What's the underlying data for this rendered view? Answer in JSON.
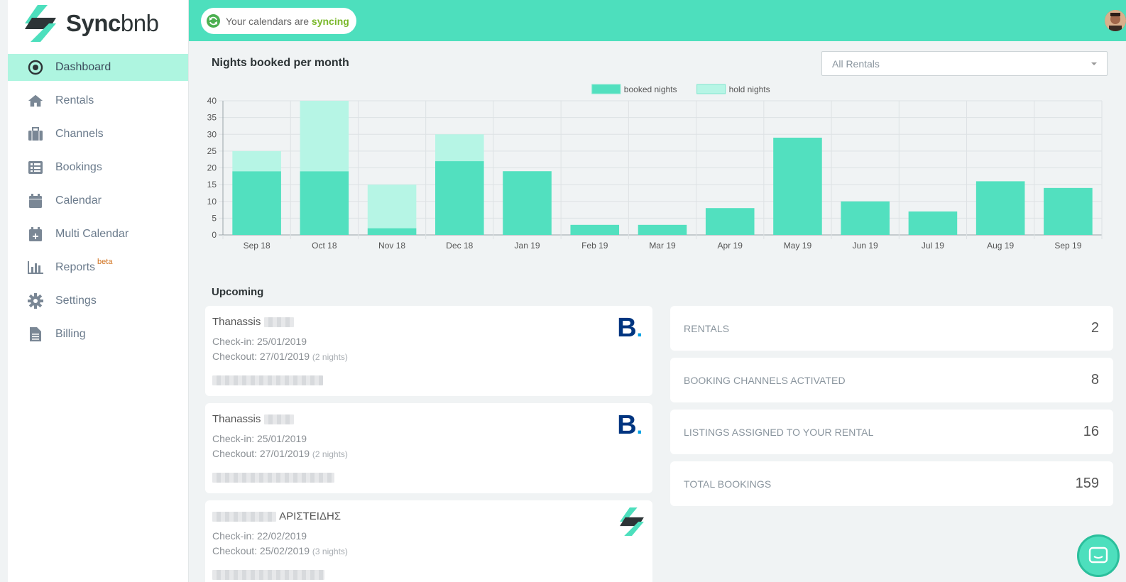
{
  "brand": {
    "name_bold": "Sync",
    "name_light": "bnb",
    "accent": "#4ddfbd",
    "accent_light": "#aef5e0"
  },
  "topbar": {
    "sync_prefix": "Your calendars are",
    "sync_status": "syncing"
  },
  "sidebar": {
    "items": [
      {
        "label": "Dashboard",
        "icon": "dashboard-icon",
        "active": true
      },
      {
        "label": "Rentals",
        "icon": "home-icon"
      },
      {
        "label": "Channels",
        "icon": "briefcase-icon"
      },
      {
        "label": "Bookings",
        "icon": "list-icon"
      },
      {
        "label": "Calendar",
        "icon": "calendar-icon"
      },
      {
        "label": "Multi Calendar",
        "icon": "calendar-plus-icon"
      },
      {
        "label": "Reports",
        "icon": "bar-chart-icon",
        "badge": "beta"
      },
      {
        "label": "Settings",
        "icon": "gear-icon"
      },
      {
        "label": "Billing",
        "icon": "file-icon"
      }
    ]
  },
  "chart_section": {
    "title": "Nights booked per month",
    "rental_select": {
      "value": "All Rentals"
    }
  },
  "chart_data": {
    "type": "bar",
    "stacked": true,
    "categories": [
      "Sep 18",
      "Oct 18",
      "Nov 18",
      "Dec 18",
      "Jan 19",
      "Feb 19",
      "Mar 19",
      "Apr 19",
      "May 19",
      "Jun 19",
      "Jul 19",
      "Aug 19",
      "Sep 19"
    ],
    "series": [
      {
        "name": "booked nights",
        "color": "#52e0bf",
        "values": [
          19,
          19,
          2,
          22,
          19,
          3,
          3,
          8,
          29,
          10,
          7,
          16,
          14
        ]
      },
      {
        "name": "hold nights",
        "color": "#b6f5e5",
        "values": [
          6,
          21,
          13,
          8,
          0,
          0,
          0,
          0,
          0,
          0,
          0,
          0,
          0
        ]
      }
    ],
    "ylim": [
      0,
      40
    ],
    "yticks": [
      0,
      5,
      10,
      15,
      20,
      25,
      30,
      35,
      40
    ],
    "grid": true,
    "legend_position": "top-center",
    "title": "",
    "xlabel": "",
    "ylabel": ""
  },
  "upcoming": {
    "title": "Upcoming",
    "bookings": [
      {
        "guest_first": "Thanassis",
        "guest_last": "",
        "checkin": "Check-in: 25/01/2019",
        "checkout": "Checkout: 27/01/2019",
        "nights": "(2 nights)",
        "channel": "booking-com-logo"
      },
      {
        "guest_first": "Thanassis",
        "guest_last": "",
        "checkin": "Check-in: 25/01/2019",
        "checkout": "Checkout: 27/01/2019",
        "nights": "(2 nights)",
        "channel": "booking-com-logo"
      },
      {
        "guest_first": "",
        "guest_last": "ΑΡΙΣΤΕΙΔΗΣ",
        "checkin": "Check-in: 22/02/2019",
        "checkout": "Checkout: 25/02/2019",
        "nights": "(3 nights)",
        "channel": "syncbnb-logo"
      }
    ]
  },
  "stats": [
    {
      "label": "RENTALS",
      "value": "2"
    },
    {
      "label": "BOOKING CHANNELS ACTIVATED",
      "value": "8"
    },
    {
      "label": "LISTINGS ASSIGNED TO YOUR RENTAL",
      "value": "16"
    },
    {
      "label": "TOTAL BOOKINGS",
      "value": "159"
    }
  ]
}
